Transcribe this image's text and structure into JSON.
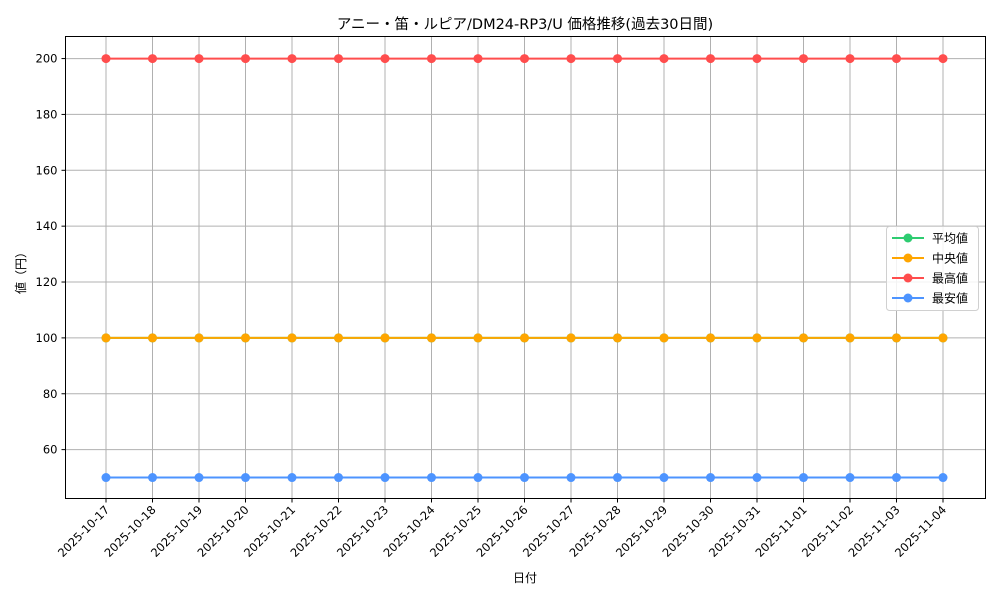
{
  "chart_data": {
    "type": "line",
    "title": "アニー・笛・ルピア/DM24-RP3/U 価格推移(過去30日間)",
    "xlabel": "日付",
    "ylabel": "値（円）",
    "categories": [
      "2025-10-17",
      "2025-10-18",
      "2025-10-19",
      "2025-10-20",
      "2025-10-21",
      "2025-10-22",
      "2025-10-23",
      "2025-10-24",
      "2025-10-25",
      "2025-10-26",
      "2025-10-27",
      "2025-10-28",
      "2025-10-29",
      "2025-10-30",
      "2025-10-31",
      "2025-11-01",
      "2025-11-02",
      "2025-11-03",
      "2025-11-04"
    ],
    "series": [
      {
        "name": "平均値",
        "color": "#2ecc71",
        "values": [
          100,
          100,
          100,
          100,
          100,
          100,
          100,
          100,
          100,
          100,
          100,
          100,
          100,
          100,
          100,
          100,
          100,
          100,
          100
        ]
      },
      {
        "name": "中央値",
        "color": "#ffa500",
        "values": [
          100,
          100,
          100,
          100,
          100,
          100,
          100,
          100,
          100,
          100,
          100,
          100,
          100,
          100,
          100,
          100,
          100,
          100,
          100
        ]
      },
      {
        "name": "最高値",
        "color": "#ff4d4d",
        "values": [
          200,
          200,
          200,
          200,
          200,
          200,
          200,
          200,
          200,
          200,
          200,
          200,
          200,
          200,
          200,
          200,
          200,
          200,
          200
        ]
      },
      {
        "name": "最安値",
        "color": "#4d94ff",
        "values": [
          50,
          50,
          50,
          50,
          50,
          50,
          50,
          50,
          50,
          50,
          50,
          50,
          50,
          50,
          50,
          50,
          50,
          50,
          50
        ]
      }
    ],
    "yticks": [
      60,
      80,
      100,
      120,
      140,
      160,
      180,
      200
    ],
    "ylim": [
      42.5,
      207.9
    ],
    "grid": true,
    "legend_position": "center right",
    "draw_order": [
      "平均値",
      "中央値",
      "最高値",
      "最安値"
    ],
    "note": "中央値 line hidden beneath 平均値 line (identical values)"
  }
}
